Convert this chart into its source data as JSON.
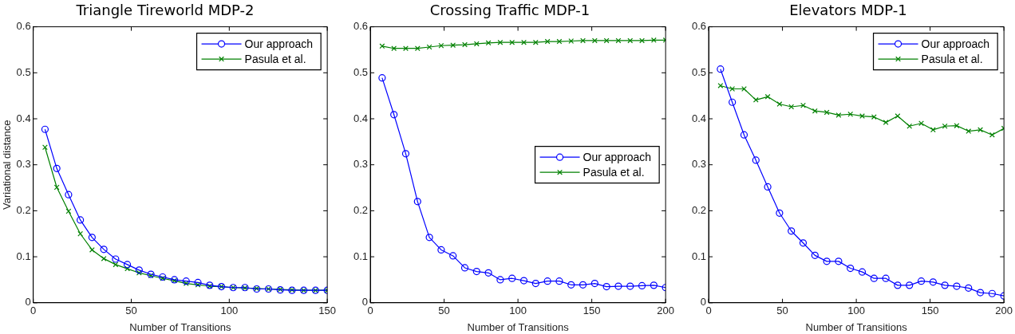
{
  "chart_data": [
    {
      "type": "line",
      "title": "Triangle Tireworld MDP-2",
      "xlabel": "Number of Transitions",
      "ylabel": "Variational distance",
      "xlim": [
        0,
        150
      ],
      "xticks": [
        0,
        50,
        100,
        150
      ],
      "ylim": [
        0,
        0.6
      ],
      "yticks": [
        0,
        0.1,
        0.2,
        0.3,
        0.4,
        0.5,
        0.6
      ],
      "grid": false,
      "legend": "top right",
      "line_style": "solid",
      "x": [
        6,
        12,
        18,
        24,
        30,
        36,
        42,
        48,
        54,
        60,
        66,
        72,
        78,
        84,
        90,
        96,
        102,
        108,
        114,
        120,
        126,
        132,
        138,
        144,
        150
      ],
      "series": [
        {
          "name": "Our approach",
          "color": "#0000ff",
          "marker": "circle",
          "values": [
            0.377,
            0.292,
            0.235,
            0.18,
            0.142,
            0.116,
            0.095,
            0.083,
            0.071,
            0.062,
            0.056,
            0.05,
            0.047,
            0.044,
            0.038,
            0.035,
            0.033,
            0.033,
            0.03,
            0.03,
            0.028,
            0.027,
            0.027,
            0.027,
            0.027
          ]
        },
        {
          "name": "Pasula et al.",
          "color": "#008000",
          "marker": "cross",
          "values": [
            0.338,
            0.251,
            0.199,
            0.15,
            0.115,
            0.096,
            0.083,
            0.074,
            0.065,
            0.059,
            0.053,
            0.048,
            0.042,
            0.039,
            0.036,
            0.035,
            0.033,
            0.032,
            0.031,
            0.03,
            0.029,
            0.028,
            0.027,
            0.027,
            0.027
          ]
        }
      ]
    },
    {
      "type": "line",
      "title": "Crossing Traffic MDP-1",
      "xlabel": "Number of Transitions",
      "xlim": [
        0,
        200
      ],
      "xticks": [
        0,
        50,
        100,
        150,
        200
      ],
      "ylim": [
        0,
        0.6
      ],
      "yticks": [
        0,
        0.1,
        0.2,
        0.3,
        0.4,
        0.5,
        0.6
      ],
      "grid": false,
      "legend": "right",
      "line_style": "solid",
      "x": [
        8,
        16,
        24,
        32,
        40,
        48,
        56,
        64,
        72,
        80,
        88,
        96,
        104,
        112,
        120,
        128,
        136,
        144,
        152,
        160,
        168,
        176,
        184,
        192,
        200
      ],
      "series": [
        {
          "name": "Our approach",
          "color": "#0000ff",
          "marker": "circle",
          "values": [
            0.489,
            0.409,
            0.324,
            0.22,
            0.142,
            0.115,
            0.102,
            0.076,
            0.068,
            0.065,
            0.05,
            0.053,
            0.048,
            0.042,
            0.047,
            0.047,
            0.039,
            0.039,
            0.042,
            0.035,
            0.036,
            0.036,
            0.037,
            0.038,
            0.033
          ]
        },
        {
          "name": "Pasula et al.",
          "color": "#008000",
          "marker": "cross",
          "values": [
            0.558,
            0.553,
            0.553,
            0.553,
            0.556,
            0.559,
            0.56,
            0.561,
            0.563,
            0.565,
            0.566,
            0.566,
            0.566,
            0.566,
            0.568,
            0.568,
            0.569,
            0.57,
            0.57,
            0.57,
            0.57,
            0.57,
            0.57,
            0.571,
            0.571
          ]
        }
      ]
    },
    {
      "type": "line",
      "title": "Elevators MDP-1",
      "xlabel": "Number of Transitions",
      "xlim": [
        0,
        200
      ],
      "xticks": [
        0,
        50,
        100,
        150,
        200
      ],
      "ylim": [
        0,
        0.6
      ],
      "yticks": [
        0,
        0.1,
        0.2,
        0.3,
        0.4,
        0.5,
        0.6
      ],
      "grid": false,
      "legend": "top right",
      "line_style": "solid",
      "x": [
        8,
        16,
        24,
        32,
        40,
        48,
        56,
        64,
        72,
        80,
        88,
        96,
        104,
        112,
        120,
        128,
        136,
        144,
        152,
        160,
        168,
        176,
        184,
        192,
        200
      ],
      "series": [
        {
          "name": "Our approach",
          "color": "#0000ff",
          "marker": "circle",
          "values": [
            0.508,
            0.436,
            0.365,
            0.31,
            0.252,
            0.195,
            0.156,
            0.13,
            0.103,
            0.09,
            0.09,
            0.075,
            0.067,
            0.053,
            0.053,
            0.038,
            0.038,
            0.047,
            0.045,
            0.038,
            0.036,
            0.032,
            0.022,
            0.02,
            0.015
          ]
        },
        {
          "name": "Pasula et al.",
          "color": "#008000",
          "marker": "cross",
          "values": [
            0.472,
            0.465,
            0.465,
            0.441,
            0.448,
            0.432,
            0.426,
            0.429,
            0.417,
            0.414,
            0.408,
            0.41,
            0.406,
            0.404,
            0.392,
            0.406,
            0.384,
            0.39,
            0.376,
            0.384,
            0.385,
            0.373,
            0.376,
            0.365,
            0.379
          ]
        }
      ]
    }
  ]
}
